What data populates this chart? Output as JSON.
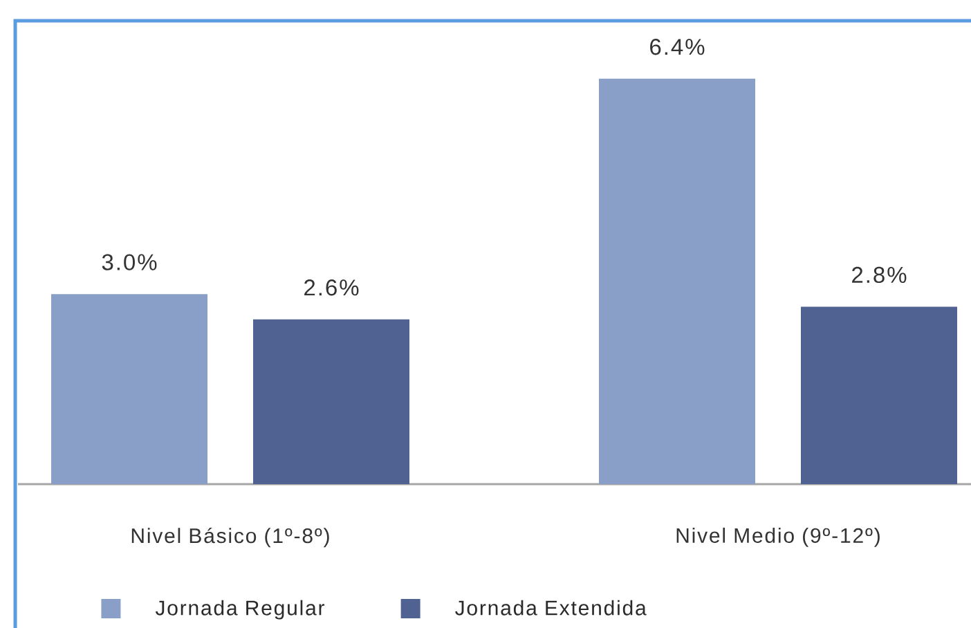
{
  "chart_data": {
    "type": "bar",
    "categories": [
      "Nivel Básico (1º-8º)",
      "Nivel Medio (9º-12º)"
    ],
    "series": [
      {
        "name": "Jornada Regular",
        "color": "#8a9fc8",
        "values": [
          3.0,
          6.4
        ],
        "value_labels": [
          "3.0%",
          "6.4%"
        ]
      },
      {
        "name": "Jornada Extendida",
        "color": "#4f6291",
        "values": [
          2.6,
          2.8
        ],
        "value_labels": [
          "2.6%",
          "2.8%"
        ]
      }
    ],
    "legend": "bottom",
    "tick_labels": "x"
  }
}
